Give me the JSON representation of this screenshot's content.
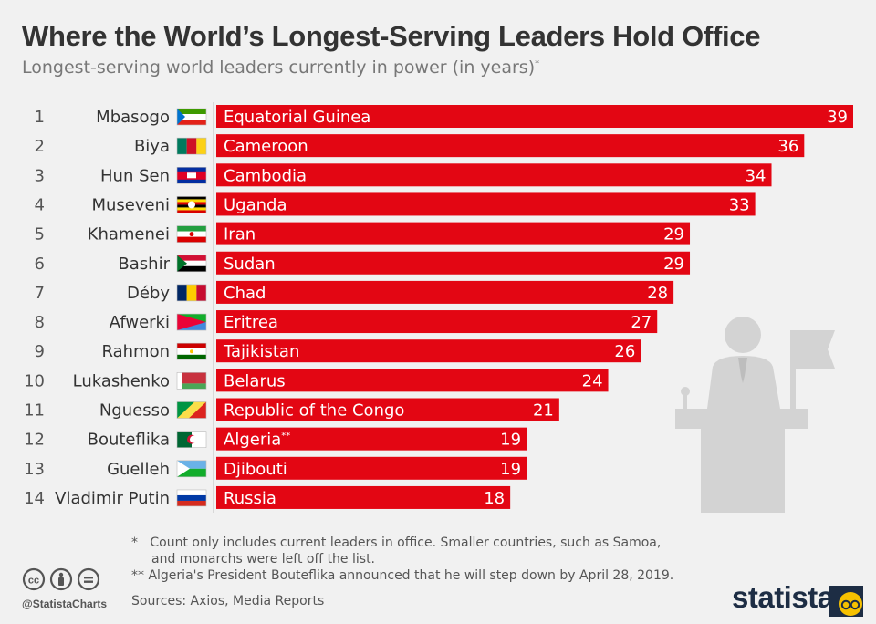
{
  "title": "Where the World’s Longest-Serving Leaders Hold Office",
  "subtitle": "Longest-serving world leaders currently in power (in years)",
  "subtitle_mark": "*",
  "colors": {
    "bar": "#e30613",
    "background": "#f1f1f1",
    "text": "#333333",
    "brand": "#1d2d44"
  },
  "chart_data": {
    "type": "bar",
    "orientation": "horizontal",
    "ranks": [
      "1",
      "2",
      "3",
      "4",
      "5",
      "6",
      "7",
      "8",
      "9",
      "10",
      "11",
      "12",
      "13",
      "14"
    ],
    "leaders": [
      "Mbasogo",
      "Biya",
      "Hun Sen",
      "Museveni",
      "Khamenei",
      "Bashir",
      "Déby",
      "Afwerki",
      "Rahmon",
      "Lukashenko",
      "Nguesso",
      "Bouteflika",
      "Guelleh",
      "Vladimir Putin"
    ],
    "categories": [
      "Equatorial Guinea",
      "Cameroon",
      "Cambodia",
      "Uganda",
      "Iran",
      "Sudan",
      "Chad",
      "Eritrea",
      "Tajikistan",
      "Belarus",
      "Republic of the Congo",
      "Algeria",
      "Djibouti",
      "Russia"
    ],
    "category_marks": [
      "",
      "",
      "",
      "",
      "",
      "",
      "",
      "",
      "",
      "",
      "",
      "**",
      "",
      ""
    ],
    "values": [
      39,
      36,
      34,
      33,
      29,
      29,
      28,
      27,
      26,
      24,
      21,
      19,
      19,
      18
    ],
    "flags": [
      "equatorial-guinea-flag",
      "cameroon-flag",
      "cambodia-flag",
      "uganda-flag",
      "iran-flag",
      "sudan-flag",
      "chad-flag",
      "eritrea-flag",
      "tajikistan-flag",
      "belarus-flag",
      "congo-flag",
      "algeria-flag",
      "djibouti-flag",
      "russia-flag"
    ],
    "xlim": [
      0,
      39
    ],
    "grid": false,
    "legend": "none"
  },
  "footnotes": {
    "note1_mark": "*",
    "note1_line1": "Count only includes current leaders in office. Smaller countries, such as Samoa,",
    "note1_line2": "and monarchs were left off the list.",
    "note2": "** Algeria's President Bouteflika announced that he will step down by April 28, 2019.",
    "sources": "Sources: Axios, Media Reports"
  },
  "branding": {
    "handle": "@StatistaCharts",
    "name": "statista"
  },
  "icons": [
    "cc-icon",
    "by-icon",
    "nd-icon",
    "statista-logo-icon",
    "podium-speaker-icon"
  ]
}
